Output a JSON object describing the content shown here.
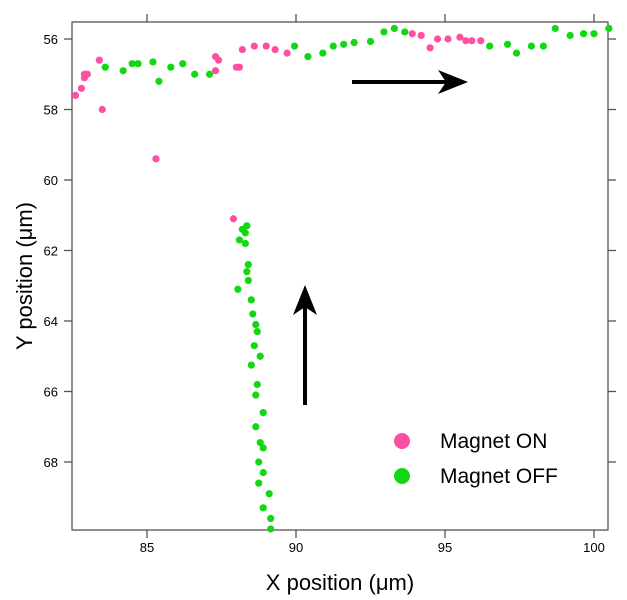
{
  "chart_data": {
    "type": "scatter",
    "xlabel": "X position (μm)",
    "ylabel": "Y position (μm)",
    "xlim": [
      82.5,
      100.6
    ],
    "ylim": [
      69.9,
      55.5
    ],
    "y_inverted": true,
    "xticks": [
      85,
      90,
      95,
      100
    ],
    "yticks": [
      56,
      58,
      60,
      62,
      64,
      66,
      68
    ],
    "grid": false,
    "legend_position": "bottom-right",
    "series": [
      {
        "name": "Magnet ON",
        "color": "#ff4fa3",
        "points": [
          [
            82.6,
            57.6
          ],
          [
            82.8,
            57.4
          ],
          [
            82.9,
            57.0
          ],
          [
            82.9,
            57.1
          ],
          [
            83.0,
            57.0
          ],
          [
            83.4,
            56.6
          ],
          [
            83.5,
            58.0
          ],
          [
            85.3,
            59.4
          ],
          [
            87.3,
            56.9
          ],
          [
            87.3,
            56.5
          ],
          [
            87.4,
            56.6
          ],
          [
            88.0,
            56.8
          ],
          [
            88.1,
            56.8
          ],
          [
            88.2,
            56.3
          ],
          [
            88.6,
            56.2
          ],
          [
            89.0,
            56.2
          ],
          [
            89.3,
            56.3
          ],
          [
            89.7,
            56.4
          ],
          [
            93.9,
            55.85
          ],
          [
            94.2,
            55.9
          ],
          [
            94.5,
            56.25
          ],
          [
            94.75,
            56.0
          ],
          [
            95.1,
            56.0
          ],
          [
            95.5,
            55.95
          ],
          [
            95.7,
            56.05
          ],
          [
            95.9,
            56.05
          ],
          [
            96.2,
            56.05
          ],
          [
            87.9,
            61.1
          ]
        ]
      },
      {
        "name": "Magnet OFF",
        "color": "#12d812",
        "points": [
          [
            83.6,
            56.8
          ],
          [
            84.2,
            56.9
          ],
          [
            84.5,
            56.7
          ],
          [
            84.7,
            56.7
          ],
          [
            85.2,
            56.65
          ],
          [
            85.4,
            57.2
          ],
          [
            85.8,
            56.8
          ],
          [
            86.2,
            56.7
          ],
          [
            86.6,
            57.0
          ],
          [
            87.1,
            57.0
          ],
          [
            89.95,
            56.2
          ],
          [
            90.4,
            56.5
          ],
          [
            90.9,
            56.4
          ],
          [
            91.25,
            56.2
          ],
          [
            91.6,
            56.15
          ],
          [
            91.95,
            56.1
          ],
          [
            92.5,
            56.07
          ],
          [
            92.95,
            55.8
          ],
          [
            93.3,
            55.7
          ],
          [
            93.65,
            55.8
          ],
          [
            96.5,
            56.2
          ],
          [
            97.1,
            56.15
          ],
          [
            97.4,
            56.4
          ],
          [
            97.9,
            56.2
          ],
          [
            98.3,
            56.2
          ],
          [
            98.7,
            55.7
          ],
          [
            99.2,
            55.9
          ],
          [
            99.65,
            55.85
          ],
          [
            100.0,
            55.85
          ],
          [
            100.5,
            55.7
          ],
          [
            88.2,
            61.4
          ],
          [
            88.35,
            61.3
          ],
          [
            88.3,
            61.5
          ],
          [
            88.1,
            61.7
          ],
          [
            88.3,
            61.8
          ],
          [
            88.4,
            62.4
          ],
          [
            88.35,
            62.6
          ],
          [
            88.4,
            62.85
          ],
          [
            88.05,
            63.1
          ],
          [
            88.5,
            63.4
          ],
          [
            88.55,
            63.8
          ],
          [
            88.65,
            64.1
          ],
          [
            88.7,
            64.3
          ],
          [
            88.6,
            64.7
          ],
          [
            88.8,
            65.0
          ],
          [
            88.5,
            65.25
          ],
          [
            88.7,
            65.8
          ],
          [
            88.65,
            66.1
          ],
          [
            88.9,
            66.6
          ],
          [
            88.65,
            67.0
          ],
          [
            88.8,
            67.45
          ],
          [
            88.9,
            67.6
          ],
          [
            88.75,
            68.0
          ],
          [
            88.9,
            68.3
          ],
          [
            88.75,
            68.6
          ],
          [
            89.1,
            68.9
          ],
          [
            88.9,
            69.3
          ],
          [
            89.15,
            69.6
          ],
          [
            89.15,
            69.9
          ]
        ]
      }
    ],
    "annotations": [
      {
        "type": "arrow",
        "direction": "right"
      },
      {
        "type": "arrow",
        "direction": "up"
      }
    ]
  }
}
